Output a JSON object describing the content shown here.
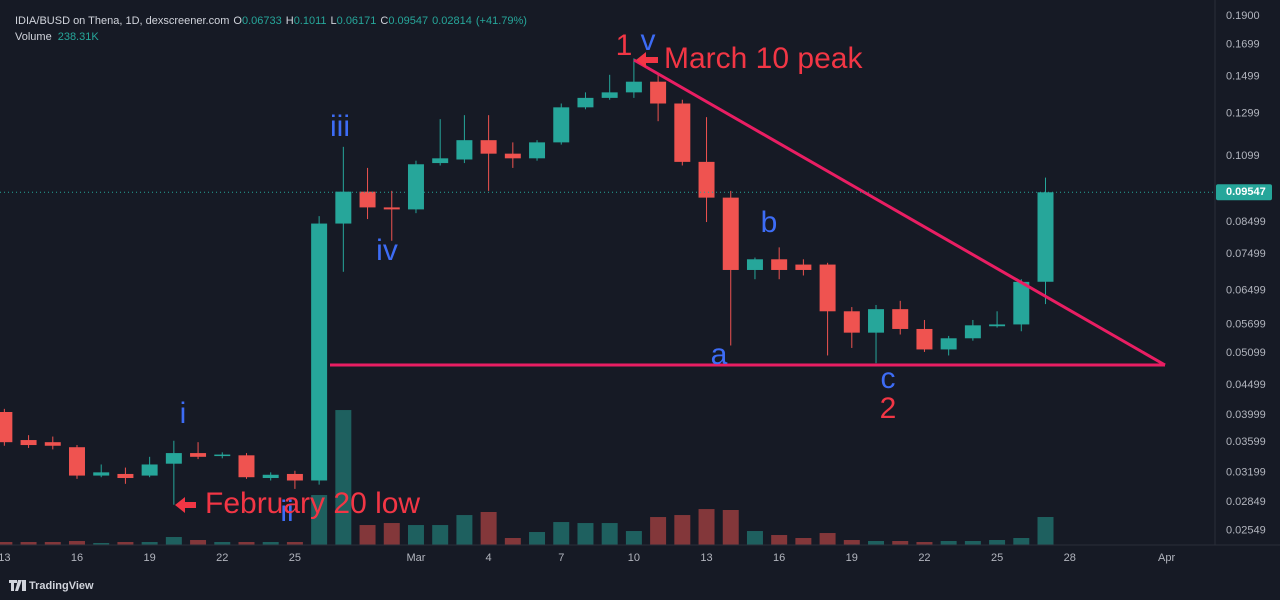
{
  "chart_data": {
    "type": "candlestick",
    "title": "IDIA/BUSD on Thena, 1D, dexscreener.com",
    "legend_keys": [
      "O",
      "H",
      "L",
      "C"
    ],
    "change": 0.02814,
    "change_label": "(+41.79%)",
    "log_scale": true,
    "grid": false,
    "up_color": "#26a69a",
    "down_color": "#ef5350",
    "categories": [
      "13",
      "14",
      "15",
      "16",
      "17",
      "18",
      "19",
      "20",
      "21",
      "22",
      "23",
      "24",
      "25",
      "26",
      "27",
      "28",
      "29",
      "1",
      "2",
      "3",
      "4",
      "5",
      "6",
      "7",
      "8",
      "9",
      "10",
      "11",
      "12",
      "13",
      "14",
      "15",
      "16",
      "17",
      "18",
      "19",
      "20",
      "21",
      "22",
      "23",
      "24",
      "25",
      "26",
      "27"
    ],
    "open": [
      0.0405,
      0.0363,
      0.036,
      0.0353,
      0.0316,
      0.0318,
      0.0316,
      0.0331,
      0.0345,
      0.0341,
      0.0342,
      0.0313,
      0.0318,
      0.031,
      0.0845,
      0.0957,
      0.09,
      0.0893,
      0.107,
      0.1085,
      0.117,
      0.111,
      0.109,
      0.116,
      0.133,
      0.138,
      0.141,
      0.147,
      0.135,
      0.1075,
      0.0935,
      0.0705,
      0.0735,
      0.072,
      0.072,
      0.06,
      0.0552,
      0.0605,
      0.056,
      0.0517,
      0.054,
      0.0566,
      0.057,
      0.06733
    ],
    "high": [
      0.041,
      0.037,
      0.0368,
      0.0356,
      0.033,
      0.0326,
      0.034,
      0.0362,
      0.036,
      0.0346,
      0.0345,
      0.032,
      0.0322,
      0.087,
      0.114,
      0.105,
      0.096,
      0.108,
      0.127,
      0.129,
      0.129,
      0.116,
      0.117,
      0.135,
      0.141,
      0.151,
      0.161,
      0.151,
      0.137,
      0.128,
      0.096,
      0.074,
      0.077,
      0.0735,
      0.0725,
      0.061,
      0.0615,
      0.0625,
      0.058,
      0.0545,
      0.058,
      0.06,
      0.068,
      0.1011
    ],
    "low": [
      0.0355,
      0.0352,
      0.035,
      0.0312,
      0.0314,
      0.0306,
      0.0314,
      0.0282,
      0.0337,
      0.0338,
      0.0312,
      0.031,
      0.03,
      0.0305,
      0.07,
      0.086,
      0.079,
      0.088,
      0.106,
      0.107,
      0.096,
      0.105,
      0.108,
      0.115,
      0.132,
      0.137,
      0.138,
      0.126,
      0.106,
      0.085,
      0.0525,
      0.068,
      0.068,
      0.069,
      0.0505,
      0.052,
      0.049,
      0.0548,
      0.0512,
      0.0505,
      0.0535,
      0.0563,
      0.0555,
      0.06171
    ],
    "close": [
      0.036,
      0.0356,
      0.0355,
      0.0316,
      0.032,
      0.0313,
      0.033,
      0.0345,
      0.034,
      0.0343,
      0.0314,
      0.0317,
      0.031,
      0.0845,
      0.0957,
      0.09,
      0.0893,
      0.1065,
      0.109,
      0.117,
      0.111,
      0.109,
      0.116,
      0.133,
      0.138,
      0.141,
      0.147,
      0.135,
      0.1075,
      0.0935,
      0.0705,
      0.0735,
      0.0705,
      0.0705,
      0.06,
      0.0552,
      0.0605,
      0.056,
      0.0517,
      0.054,
      0.0568,
      0.057,
      0.0673,
      0.09547
    ],
    "volume": {
      "name": "Volume",
      "axis": "y2",
      "up_color": "rgba(38,166,154,0.5)",
      "down_color": "rgba(239,83,80,0.5)",
      "values": [
        25500,
        25500,
        25500,
        34000,
        17000,
        25500,
        25500,
        68000,
        42500,
        25500,
        25500,
        25500,
        25500,
        425500,
        1149000,
        170000,
        187000,
        170000,
        170000,
        255000,
        281000,
        59500,
        110500,
        195500,
        187000,
        187000,
        119000,
        238000,
        255000,
        306000,
        298000,
        119000,
        85000,
        59500,
        102000,
        42500,
        34000,
        34000,
        25500,
        34000,
        34000,
        42500,
        59500,
        238310
      ],
      "value_labels": [
        null,
        null,
        null,
        null,
        null,
        null,
        null,
        null,
        null,
        null,
        null,
        null,
        null,
        null,
        null,
        null,
        null,
        null,
        null,
        null,
        null,
        null,
        null,
        null,
        null,
        null,
        null,
        null,
        null,
        null,
        null,
        null,
        null,
        null,
        null,
        null,
        null,
        null,
        null,
        null,
        null,
        null,
        null,
        "238.31K"
      ]
    },
    "xlim": [
      -0.18,
      50
    ],
    "xticks": [
      {
        "value": 0,
        "label": "13"
      },
      {
        "value": 3,
        "label": "16"
      },
      {
        "value": 6,
        "label": "19"
      },
      {
        "value": 9,
        "label": "22"
      },
      {
        "value": 12,
        "label": "25"
      },
      {
        "value": 17,
        "label": "Mar"
      },
      {
        "value": 20,
        "label": "4"
      },
      {
        "value": 23,
        "label": "7"
      },
      {
        "value": 26,
        "label": "10"
      },
      {
        "value": 29,
        "label": "13"
      },
      {
        "value": 32,
        "label": "16"
      },
      {
        "value": 35,
        "label": "19"
      },
      {
        "value": 38,
        "label": "22"
      },
      {
        "value": 41,
        "label": "25"
      },
      {
        "value": 44,
        "label": "28"
      },
      {
        "value": 48,
        "label": "Apr"
      }
    ],
    "ylim": [
      0.0241,
      0.2022
    ],
    "yticks": [
      {
        "value": 0.19,
        "label": "0.1900"
      },
      0.1699,
      0.1499,
      0.1299,
      0.1099,
      0.08499,
      0.07499,
      0.06499,
      0.05699,
      0.05099,
      0.04499,
      0.03999,
      0.03599,
      0.03199,
      0.02849,
      0.02549
    ],
    "y2lim": [
      0,
      4640000
    ],
    "annotations": [
      "1",
      "v",
      "March 10 peak",
      "iii",
      "iv",
      "i",
      "ii",
      "a",
      "b",
      "c",
      "2",
      "February 20 low"
    ],
    "brand": "TradingView"
  }
}
